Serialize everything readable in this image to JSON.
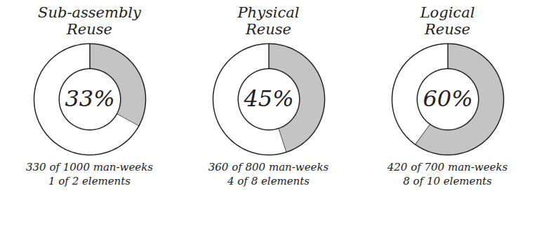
{
  "chart_data": [
    {
      "type": "donut",
      "title": "Sub-assembly Reuse",
      "values": [
        33,
        67
      ],
      "value_labels": [
        "33%",
        null
      ],
      "colors": [
        "#c4c4c4",
        "#ffffff"
      ],
      "data_labels": true,
      "tick_labels": false,
      "annotations": [
        "330 of 1000 man-weeks",
        "1 of 2 elements"
      ]
    },
    {
      "type": "donut",
      "title": "Physical Reuse",
      "values": [
        45,
        55
      ],
      "value_labels": [
        "45%",
        null
      ],
      "colors": [
        "#c4c4c4",
        "#ffffff"
      ],
      "data_labels": true,
      "tick_labels": false,
      "annotations": [
        "360 of 800 man-weeks",
        "4 of 8 elements"
      ]
    },
    {
      "type": "donut",
      "title": "Logical Reuse",
      "values": [
        60,
        40
      ],
      "value_labels": [
        "60%",
        null
      ],
      "colors": [
        "#c4c4c4",
        "#ffffff"
      ],
      "data_labels": true,
      "tick_labels": false,
      "annotations": [
        "420 of 700 man-weeks",
        "8 of 10 elements"
      ]
    }
  ]
}
